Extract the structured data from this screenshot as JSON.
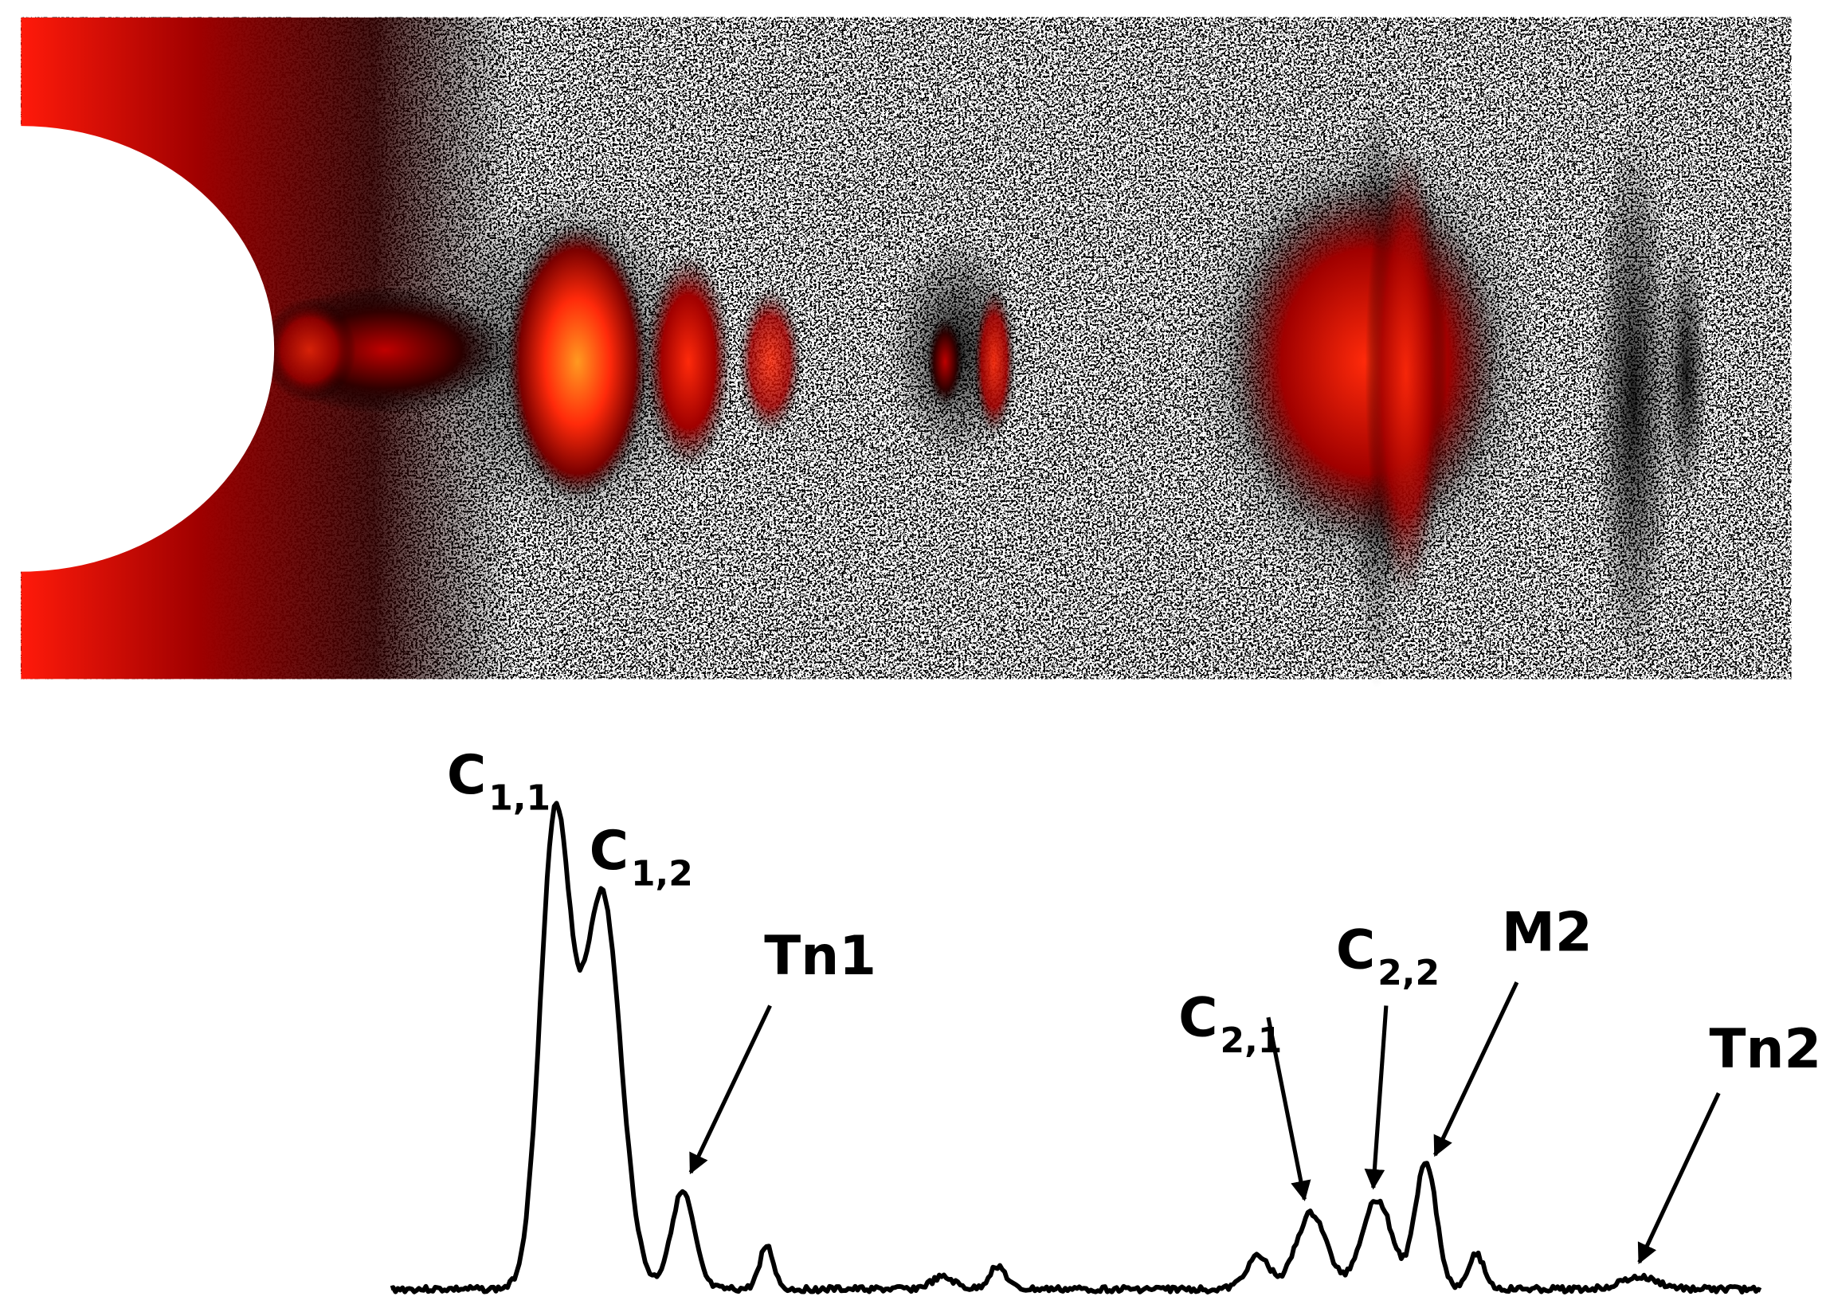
{
  "labels": [
    {
      "main": "C",
      "sub": "1,1"
    },
    {
      "main": "C",
      "sub": "1,2"
    },
    {
      "main": "Tn1"
    },
    {
      "main": "C",
      "sub": "2,1"
    },
    {
      "main": "C",
      "sub": "2,2"
    },
    {
      "main": "M2"
    },
    {
      "main": "Tn2"
    }
  ]
}
